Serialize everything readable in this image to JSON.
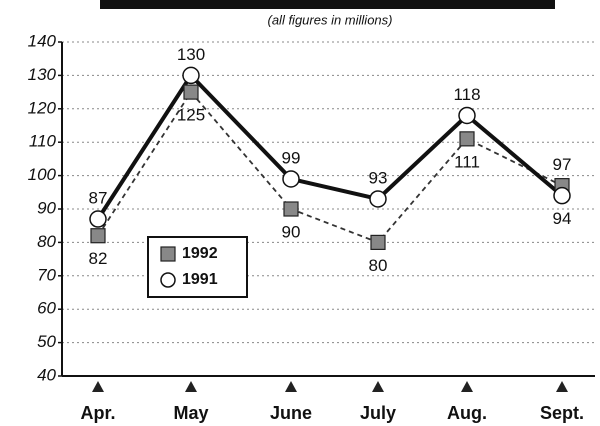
{
  "chart_data": {
    "type": "line",
    "subtitle": "(all figures in millions)",
    "categories": [
      "Apr.",
      "May",
      "June",
      "July",
      "Aug.",
      "Sept."
    ],
    "series": [
      {
        "name": "1992",
        "color": "#888888",
        "values": [
          82,
          125,
          90,
          80,
          111,
          97
        ]
      },
      {
        "name": "1991",
        "color": "#111111",
        "values": [
          87,
          130,
          99,
          93,
          118,
          94
        ]
      }
    ],
    "ylim": [
      40,
      140
    ],
    "yticks": [
      40,
      50,
      60,
      70,
      80,
      90,
      100,
      110,
      120,
      130,
      140
    ],
    "grid": true,
    "legend": "lower left"
  }
}
